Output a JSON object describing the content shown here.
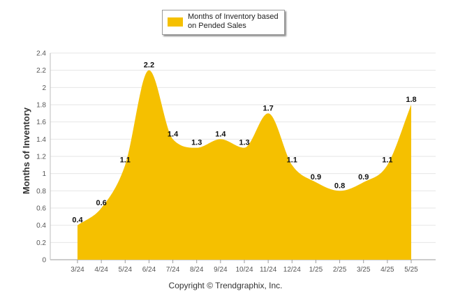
{
  "chart_data": {
    "type": "area",
    "categories": [
      "3/24",
      "4/24",
      "5/24",
      "6/24",
      "7/24",
      "8/24",
      "9/24",
      "10/24",
      "11/24",
      "12/24",
      "1/25",
      "2/25",
      "3/25",
      "4/25",
      "5/25"
    ],
    "series": [
      {
        "name": "Months of Inventory based on Pended Sales",
        "values": [
          0.4,
          0.6,
          1.1,
          2.2,
          1.4,
          1.3,
          1.4,
          1.3,
          1.7,
          1.1,
          0.9,
          0.8,
          0.9,
          1.1,
          1.8
        ],
        "color": "#f5c000"
      }
    ],
    "data_labels": [
      "0.4",
      "0.6",
      "1.1",
      "2.2",
      "1.4",
      "1.3",
      "1.4",
      "1.3",
      "1.7",
      "1.1",
      "0.9",
      "0.8",
      "0.9",
      "1.1",
      "1.8"
    ],
    "ylabel": "Months of Inventory",
    "xlabel": "",
    "ylim": [
      0,
      2.4
    ],
    "yticks": [
      "0",
      "0.2",
      "0.4",
      "0.6",
      "0.8",
      "1",
      "1.2",
      "1.4",
      "1.6",
      "1.8",
      "2",
      "2.2",
      "2.4"
    ],
    "grid": true,
    "legend_position": "top-center"
  },
  "legend": {
    "label_line1": "Months of Inventory based",
    "label_line2": "on Pended Sales"
  },
  "footer": {
    "copyright": "Copyright © Trendgraphix, Inc."
  }
}
